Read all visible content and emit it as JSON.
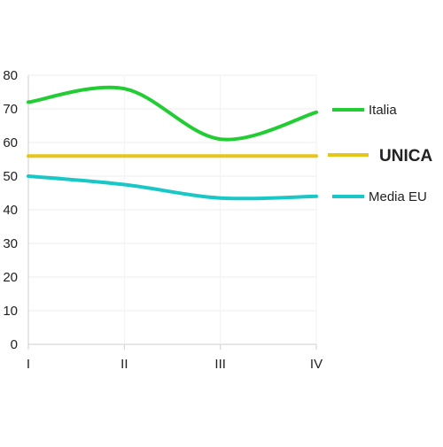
{
  "chart_data": {
    "type": "line",
    "categories": [
      "I",
      "II",
      "III",
      "IV"
    ],
    "ylim": [
      0,
      80
    ],
    "yticks": [
      0,
      10,
      20,
      30,
      40,
      50,
      60,
      70,
      80
    ],
    "grid": true,
    "legend_position": "right",
    "smooth": true,
    "series": [
      {
        "name": "Italia",
        "color": "#22cc33",
        "values": [
          72,
          76,
          61,
          69
        ],
        "legend_bold": false
      },
      {
        "name": "UNICA",
        "color": "#e6c619",
        "values": [
          56,
          56,
          56,
          56
        ],
        "legend_bold": true
      },
      {
        "name": "Media EU",
        "color": "#19c7c7",
        "values": [
          50,
          47.5,
          43.5,
          44
        ],
        "legend_bold": false
      }
    ]
  }
}
